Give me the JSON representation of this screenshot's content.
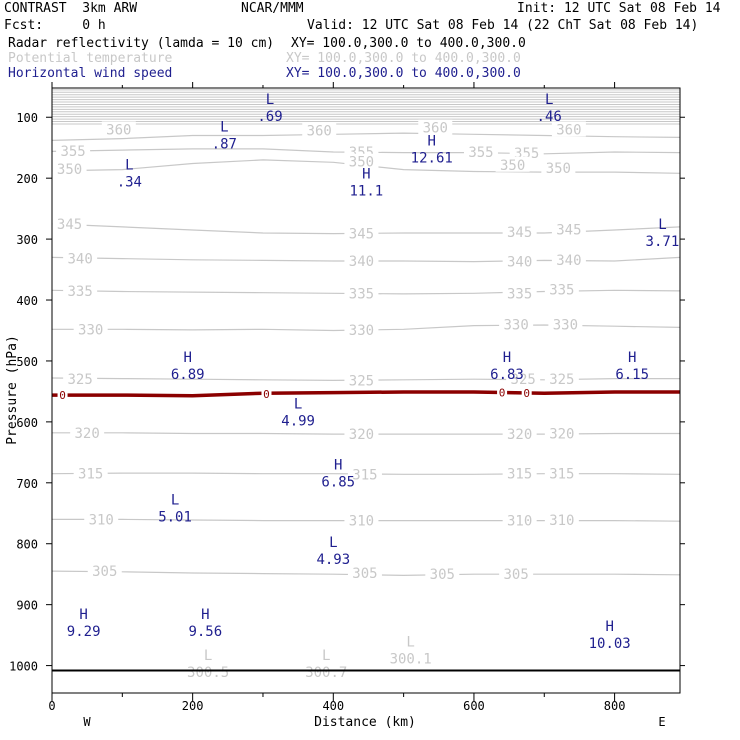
{
  "header": {
    "model": "CONTRAST  3km ARW",
    "org": "NCAR/MMM",
    "init": "Init: 12 UTC Sat 08 Feb 14",
    "fcst": "Fcst:     0 h",
    "valid": "Valid: 12 UTC Sat 08 Feb 14 (22 ChT Sat 08 Feb 14)",
    "fields": [
      {
        "name": "Radar reflectivity (lamda = 10 cm)",
        "xy": "XY= 100.0,300.0 to 400.0,300.0",
        "color": "#000000"
      },
      {
        "name": "Potential temperature",
        "xy": "XY= 100.0,300.0 to 400.0,300.0",
        "color": "#c8c8c8"
      },
      {
        "name": "Horizontal wind speed",
        "xy": "XY= 100.0,300.0 to 400.0,300.0",
        "color": "#1f1f8f"
      }
    ]
  },
  "chart_data": {
    "type": "cross-section",
    "xlabel": "Distance (km)",
    "ylabel": "Pressure (hPa)",
    "xlim": [
      0,
      893
    ],
    "ylim": [
      1045,
      52
    ],
    "x_ticks": [
      0,
      200,
      400,
      600,
      800
    ],
    "y_ticks": [
      100,
      200,
      300,
      400,
      500,
      600,
      700,
      800,
      900,
      1000
    ],
    "direction_labels": {
      "left": "W",
      "right": "E"
    },
    "surface_pressure": 1008,
    "colors": {
      "theta": "#c8c8c8",
      "wind": "#1f1f8f",
      "freezing": "#8b0000"
    },
    "theta_lines": [
      {
        "value": 360,
        "points": [
          [
            0,
            138
          ],
          [
            100,
            135
          ],
          [
            200,
            130
          ],
          [
            300,
            130
          ],
          [
            400,
            128
          ],
          [
            500,
            126
          ],
          [
            600,
            128
          ],
          [
            700,
            130
          ],
          [
            800,
            132
          ],
          [
            893,
            133
          ]
        ],
        "labels": [
          [
            95,
            120
          ],
          [
            380,
            122
          ],
          [
            545,
            117
          ],
          [
            735,
            120
          ]
        ]
      },
      {
        "value": 355,
        "points": [
          [
            0,
            156
          ],
          [
            100,
            154
          ],
          [
            200,
            152
          ],
          [
            300,
            152
          ],
          [
            400,
            157
          ],
          [
            500,
            158
          ],
          [
            600,
            158
          ],
          [
            700,
            160
          ],
          [
            800,
            157
          ],
          [
            893,
            158
          ]
        ],
        "labels": [
          [
            30,
            155
          ],
          [
            440,
            157
          ],
          [
            610,
            157
          ],
          [
            675,
            159
          ]
        ]
      },
      {
        "value": 350,
        "points": [
          [
            0,
            188
          ],
          [
            100,
            186
          ],
          [
            200,
            176
          ],
          [
            300,
            170
          ],
          [
            400,
            174
          ],
          [
            500,
            186
          ],
          [
            600,
            189
          ],
          [
            700,
            190
          ],
          [
            800,
            190
          ],
          [
            893,
            192
          ]
        ],
        "labels": [
          [
            25,
            185
          ],
          [
            440,
            173
          ],
          [
            655,
            178
          ],
          [
            720,
            183
          ]
        ]
      },
      {
        "value": 345,
        "points": [
          [
            0,
            275
          ],
          [
            100,
            280
          ],
          [
            200,
            285
          ],
          [
            300,
            290
          ],
          [
            400,
            291
          ],
          [
            500,
            290
          ],
          [
            600,
            290
          ],
          [
            700,
            290
          ],
          [
            800,
            285
          ],
          [
            893,
            280
          ]
        ],
        "labels": [
          [
            25,
            275
          ],
          [
            440,
            291
          ],
          [
            665,
            288
          ],
          [
            735,
            284
          ]
        ]
      },
      {
        "value": 340,
        "points": [
          [
            0,
            330
          ],
          [
            100,
            332
          ],
          [
            200,
            334
          ],
          [
            300,
            335
          ],
          [
            400,
            336
          ],
          [
            500,
            336
          ],
          [
            600,
            337
          ],
          [
            700,
            335
          ],
          [
            800,
            336
          ],
          [
            893,
            330
          ]
        ],
        "labels": [
          [
            40,
            332
          ],
          [
            440,
            336
          ],
          [
            665,
            337
          ],
          [
            735,
            334
          ]
        ]
      },
      {
        "value": 335,
        "points": [
          [
            0,
            384
          ],
          [
            100,
            386
          ],
          [
            200,
            387
          ],
          [
            300,
            388
          ],
          [
            400,
            389
          ],
          [
            500,
            390
          ],
          [
            600,
            389
          ],
          [
            700,
            386
          ],
          [
            800,
            384
          ],
          [
            893,
            385
          ]
        ],
        "labels": [
          [
            40,
            385
          ],
          [
            440,
            389
          ],
          [
            665,
            389
          ],
          [
            725,
            383
          ]
        ]
      },
      {
        "value": 330,
        "points": [
          [
            0,
            448
          ],
          [
            100,
            448
          ],
          [
            200,
            449
          ],
          [
            300,
            448
          ],
          [
            400,
            450
          ],
          [
            500,
            448
          ],
          [
            600,
            442
          ],
          [
            700,
            441
          ],
          [
            800,
            443
          ],
          [
            893,
            445
          ]
        ],
        "labels": [
          [
            55,
            448
          ],
          [
            440,
            449
          ],
          [
            660,
            440
          ],
          [
            730,
            440
          ]
        ]
      },
      {
        "value": 325,
        "points": [
          [
            0,
            528
          ],
          [
            100,
            529
          ],
          [
            200,
            530
          ],
          [
            300,
            531
          ],
          [
            400,
            532
          ],
          [
            500,
            531
          ],
          [
            600,
            530
          ],
          [
            700,
            531
          ],
          [
            800,
            529
          ],
          [
            893,
            529
          ]
        ],
        "labels": [
          [
            40,
            530
          ],
          [
            440,
            532
          ],
          [
            670,
            530
          ],
          [
            725,
            530
          ]
        ]
      },
      {
        "value": 320,
        "points": [
          [
            0,
            618
          ],
          [
            100,
            618
          ],
          [
            200,
            619
          ],
          [
            300,
            619
          ],
          [
            400,
            620
          ],
          [
            500,
            620
          ],
          [
            600,
            620
          ],
          [
            700,
            620
          ],
          [
            800,
            619
          ],
          [
            893,
            619
          ]
        ],
        "labels": [
          [
            50,
            618
          ],
          [
            440,
            620
          ],
          [
            665,
            620
          ],
          [
            725,
            619
          ]
        ]
      },
      {
        "value": 315,
        "points": [
          [
            0,
            685
          ],
          [
            100,
            684
          ],
          [
            200,
            684
          ],
          [
            300,
            685
          ],
          [
            400,
            685
          ],
          [
            500,
            686
          ],
          [
            600,
            686
          ],
          [
            700,
            685
          ],
          [
            800,
            685
          ],
          [
            893,
            686
          ]
        ],
        "labels": [
          [
            55,
            685
          ],
          [
            445,
            686
          ],
          [
            665,
            685
          ],
          [
            725,
            685
          ]
        ]
      },
      {
        "value": 310,
        "points": [
          [
            0,
            760
          ],
          [
            100,
            760
          ],
          [
            200,
            761
          ],
          [
            300,
            762
          ],
          [
            400,
            762
          ],
          [
            500,
            762
          ],
          [
            600,
            762
          ],
          [
            700,
            762
          ],
          [
            800,
            762
          ],
          [
            893,
            763
          ]
        ],
        "labels": [
          [
            70,
            760
          ],
          [
            440,
            762
          ],
          [
            665,
            762
          ],
          [
            725,
            761
          ]
        ]
      },
      {
        "value": 305,
        "points": [
          [
            0,
            845
          ],
          [
            100,
            846
          ],
          [
            200,
            848
          ],
          [
            300,
            849
          ],
          [
            400,
            850
          ],
          [
            500,
            852
          ],
          [
            600,
            850
          ],
          [
            700,
            850
          ],
          [
            800,
            850
          ],
          [
            893,
            851
          ]
        ],
        "labels": [
          [
            75,
            845
          ],
          [
            445,
            848
          ],
          [
            555,
            850
          ],
          [
            660,
            850
          ]
        ]
      }
    ],
    "freezing_level": {
      "label": "0",
      "points": [
        [
          0,
          556
        ],
        [
          100,
          556
        ],
        [
          200,
          557
        ],
        [
          300,
          553
        ],
        [
          400,
          552
        ],
        [
          500,
          551
        ],
        [
          600,
          551
        ],
        [
          700,
          553
        ],
        [
          800,
          551
        ],
        [
          893,
          551
        ]
      ],
      "labels": [
        [
          15,
          556
        ],
        [
          305,
          554
        ],
        [
          640,
          552
        ],
        [
          675,
          553
        ]
      ]
    },
    "extrema": [
      {
        "kind": "L",
        "value": ".69",
        "x": 310,
        "y": 85,
        "color": "wind"
      },
      {
        "kind": "L",
        "value": ".46",
        "x": 707,
        "y": 85,
        "color": "wind"
      },
      {
        "kind": "L",
        "value": ".87",
        "x": 245,
        "y": 130,
        "color": "wind"
      },
      {
        "kind": "H",
        "value": "12.61",
        "x": 540,
        "y": 153,
        "color": "wind"
      },
      {
        "kind": "L",
        "value": ".34",
        "x": 110,
        "y": 192,
        "color": "wind"
      },
      {
        "kind": "H",
        "value": "11.1",
        "x": 447,
        "y": 207,
        "color": "wind"
      },
      {
        "kind": "L",
        "value": "3.71",
        "x": 868,
        "y": 290,
        "color": "wind"
      },
      {
        "kind": "H",
        "value": "6.89",
        "x": 193,
        "y": 508,
        "color": "wind"
      },
      {
        "kind": "H",
        "value": "6.83",
        "x": 647,
        "y": 508,
        "color": "wind"
      },
      {
        "kind": "H",
        "value": "6.15",
        "x": 825,
        "y": 508,
        "color": "wind"
      },
      {
        "kind": "L",
        "value": "4.99",
        "x": 350,
        "y": 585,
        "color": "wind"
      },
      {
        "kind": "H",
        "value": "6.85",
        "x": 407,
        "y": 685,
        "color": "wind"
      },
      {
        "kind": "L",
        "value": "5.01",
        "x": 175,
        "y": 742,
        "color": "wind"
      },
      {
        "kind": "L",
        "value": "4.93",
        "x": 400,
        "y": 812,
        "color": "wind"
      },
      {
        "kind": "H",
        "value": "9.29",
        "x": 45,
        "y": 930,
        "color": "wind"
      },
      {
        "kind": "H",
        "value": "9.56",
        "x": 218,
        "y": 930,
        "color": "wind"
      },
      {
        "kind": "H",
        "value": "10.03",
        "x": 793,
        "y": 950,
        "color": "wind"
      },
      {
        "kind": "L",
        "value": "300.1",
        "x": 510,
        "y": 975,
        "color": "theta"
      },
      {
        "kind": "L",
        "value": "300.5",
        "x": 222,
        "y": 997,
        "color": "theta"
      },
      {
        "kind": "L",
        "value": "300.7",
        "x": 390,
        "y": 997,
        "color": "theta"
      }
    ]
  }
}
